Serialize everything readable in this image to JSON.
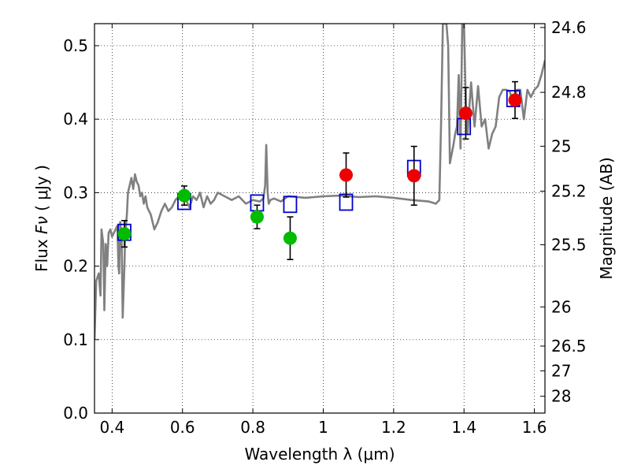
{
  "chart_data": {
    "type": "scatter",
    "xlabel": "Wavelength  λ (μm)",
    "ylabel_prefix": "Flux  ",
    "ylabel_symbol": "Fν",
    "ylabel_suffix": "  ( μJy )",
    "y2label": "Magnitude (AB)",
    "xlim": [
      0.35,
      1.63
    ],
    "ylim": [
      0.0,
      0.53
    ],
    "grid": true,
    "x_ticks": [
      0.4,
      0.6,
      0.8,
      1.0,
      1.2,
      1.4,
      1.6
    ],
    "x_tick_labels": [
      "0.4",
      "0.6",
      "0.8",
      "1",
      "1.2",
      "1.4",
      "1.6"
    ],
    "y_ticks": [
      0.0,
      0.1,
      0.2,
      0.3,
      0.4,
      0.5
    ],
    "y_tick_labels": [
      "0.0",
      "0.1",
      "0.2",
      "0.3",
      "0.4",
      "0.5"
    ],
    "mag_ticks": [
      {
        "label": "24.6",
        "flux": 0.5248
      },
      {
        "label": "24.8",
        "flux": 0.4365
      },
      {
        "label": "25",
        "flux": 0.3631
      },
      {
        "label": "25.2",
        "flux": 0.302
      },
      {
        "label": "25.5",
        "flux": 0.2291
      },
      {
        "label": "26",
        "flux": 0.1445
      },
      {
        "label": "26.5",
        "flux": 0.0912
      },
      {
        "label": "27",
        "flux": 0.0575
      },
      {
        "label": "28",
        "flux": 0.0229
      }
    ],
    "colors": {
      "model": "#808080",
      "model_boxes": "#0000cc",
      "green_points": "#00bb00",
      "red_points": "#ee0000",
      "errorbar": "#000000"
    },
    "model_spectrum": {
      "name": "model SED",
      "x": [
        0.35,
        0.355,
        0.362,
        0.367,
        0.37,
        0.375,
        0.378,
        0.382,
        0.386,
        0.39,
        0.395,
        0.4,
        0.405,
        0.41,
        0.415,
        0.418,
        0.42,
        0.423,
        0.427,
        0.43,
        0.435,
        0.437,
        0.44,
        0.442,
        0.445,
        0.45,
        0.455,
        0.46,
        0.465,
        0.47,
        0.475,
        0.48,
        0.485,
        0.49,
        0.495,
        0.5,
        0.51,
        0.52,
        0.53,
        0.54,
        0.55,
        0.56,
        0.57,
        0.58,
        0.59,
        0.6,
        0.61,
        0.62,
        0.63,
        0.64,
        0.65,
        0.66,
        0.67,
        0.68,
        0.69,
        0.7,
        0.72,
        0.74,
        0.76,
        0.78,
        0.8,
        0.82,
        0.83,
        0.835,
        0.838,
        0.842,
        0.845,
        0.85,
        0.86,
        0.88,
        0.9,
        0.95,
        1.0,
        1.05,
        1.1,
        1.15,
        1.2,
        1.25,
        1.3,
        1.32,
        1.33,
        1.335,
        1.34,
        1.342,
        1.345,
        1.35,
        1.355,
        1.36,
        1.37,
        1.375,
        1.38,
        1.385,
        1.39,
        1.395,
        1.4,
        1.405,
        1.41,
        1.42,
        1.43,
        1.44,
        1.45,
        1.46,
        1.47,
        1.48,
        1.49,
        1.5,
        1.51,
        1.52,
        1.53,
        1.54,
        1.55,
        1.56,
        1.57,
        1.58,
        1.59,
        1.6,
        1.61,
        1.62,
        1.63
      ],
      "y": [
        0.1,
        0.18,
        0.19,
        0.16,
        0.25,
        0.23,
        0.14,
        0.23,
        0.2,
        0.245,
        0.25,
        0.24,
        0.245,
        0.25,
        0.255,
        0.2,
        0.19,
        0.26,
        0.24,
        0.13,
        0.2,
        0.24,
        0.26,
        0.27,
        0.3,
        0.31,
        0.32,
        0.305,
        0.325,
        0.315,
        0.31,
        0.295,
        0.3,
        0.285,
        0.295,
        0.28,
        0.27,
        0.25,
        0.26,
        0.275,
        0.285,
        0.275,
        0.28,
        0.29,
        0.295,
        0.293,
        0.29,
        0.28,
        0.295,
        0.29,
        0.3,
        0.28,
        0.295,
        0.285,
        0.29,
        0.3,
        0.295,
        0.29,
        0.295,
        0.285,
        0.29,
        0.288,
        0.292,
        0.31,
        0.365,
        0.3,
        0.285,
        0.29,
        0.292,
        0.288,
        0.295,
        0.293,
        0.295,
        0.296,
        0.294,
        0.295,
        0.293,
        0.29,
        0.288,
        0.285,
        0.29,
        0.4,
        0.53,
        0.53,
        0.53,
        0.53,
        0.5,
        0.34,
        0.365,
        0.38,
        0.39,
        0.46,
        0.36,
        0.53,
        0.53,
        0.42,
        0.38,
        0.45,
        0.39,
        0.445,
        0.39,
        0.4,
        0.36,
        0.38,
        0.39,
        0.43,
        0.44,
        0.44,
        0.438,
        0.42,
        0.44,
        0.44,
        0.4,
        0.44,
        0.43,
        0.44,
        0.445,
        0.46,
        0.48
      ]
    },
    "model_boxes": {
      "name": "synthetic photometry",
      "x": [
        0.435,
        0.605,
        0.812,
        0.906,
        1.065,
        1.258,
        1.4,
        1.54
      ],
      "y": [
        0.246,
        0.288,
        0.286,
        0.284,
        0.287,
        0.333,
        0.39,
        0.428
      ]
    },
    "series": [
      {
        "name": "green points",
        "marker": "circle",
        "x": [
          0.435,
          0.605,
          0.812,
          0.906
        ],
        "y": [
          0.244,
          0.296,
          0.267,
          0.238
        ],
        "err": [
          0.018,
          0.013,
          0.016,
          0.029
        ]
      },
      {
        "name": "red points",
        "marker": "circle",
        "x": [
          1.065,
          1.258,
          1.405,
          1.545
        ],
        "y": [
          0.324,
          0.323,
          0.408,
          0.426
        ],
        "err": [
          0.03,
          0.04,
          0.035,
          0.025
        ]
      }
    ]
  }
}
